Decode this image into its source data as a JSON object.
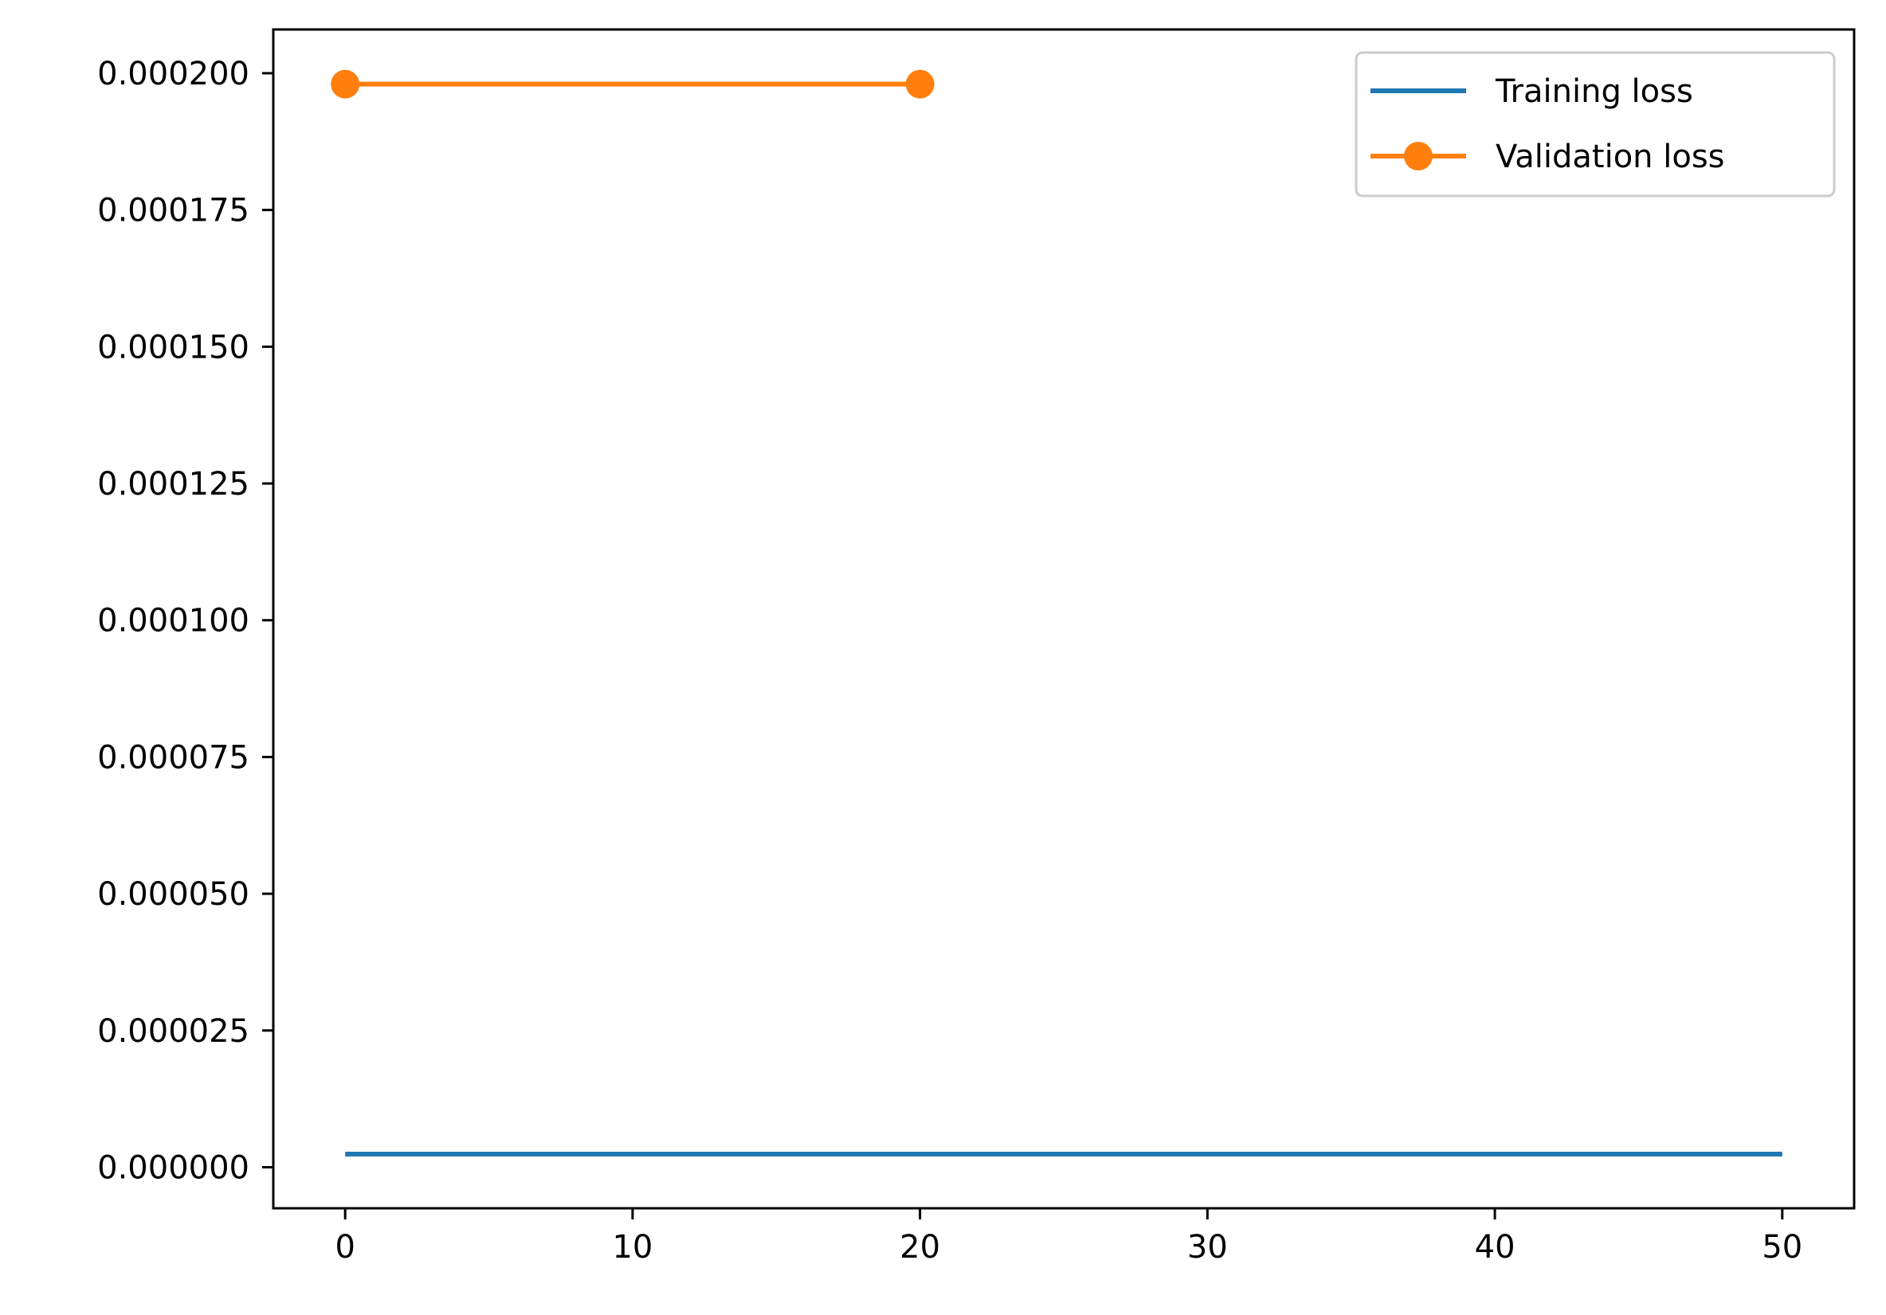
{
  "chart_data": {
    "type": "line",
    "title": "",
    "xlabel": "",
    "ylabel": "",
    "xlim": [
      -2.5,
      52.5
    ],
    "ylim": [
      -7.5e-06,
      0.000208
    ],
    "x_ticks": [
      0,
      10,
      20,
      30,
      40,
      50
    ],
    "x_tick_labels": [
      "0",
      "10",
      "20",
      "30",
      "40",
      "50"
    ],
    "y_ticks": [
      0,
      2.5e-05,
      5e-05,
      7.5e-05,
      0.0001,
      0.000125,
      0.00015,
      0.000175,
      0.0002
    ],
    "y_tick_labels": [
      "0.000000",
      "0.000025",
      "0.000050",
      "0.000075",
      "0.000100",
      "0.000125",
      "0.000150",
      "0.000175",
      "0.000200"
    ],
    "grid": false,
    "legend_position": "top-right",
    "series": [
      {
        "name": "Training loss",
        "color": "#1f77b4",
        "marker": "none",
        "x": [
          0,
          50
        ],
        "y": [
          2.4e-06,
          2.4e-06
        ]
      },
      {
        "name": "Validation loss",
        "color": "#ff7f0e",
        "marker": "circle",
        "x": [
          0,
          20
        ],
        "y": [
          0.000198,
          0.000198
        ]
      }
    ]
  }
}
